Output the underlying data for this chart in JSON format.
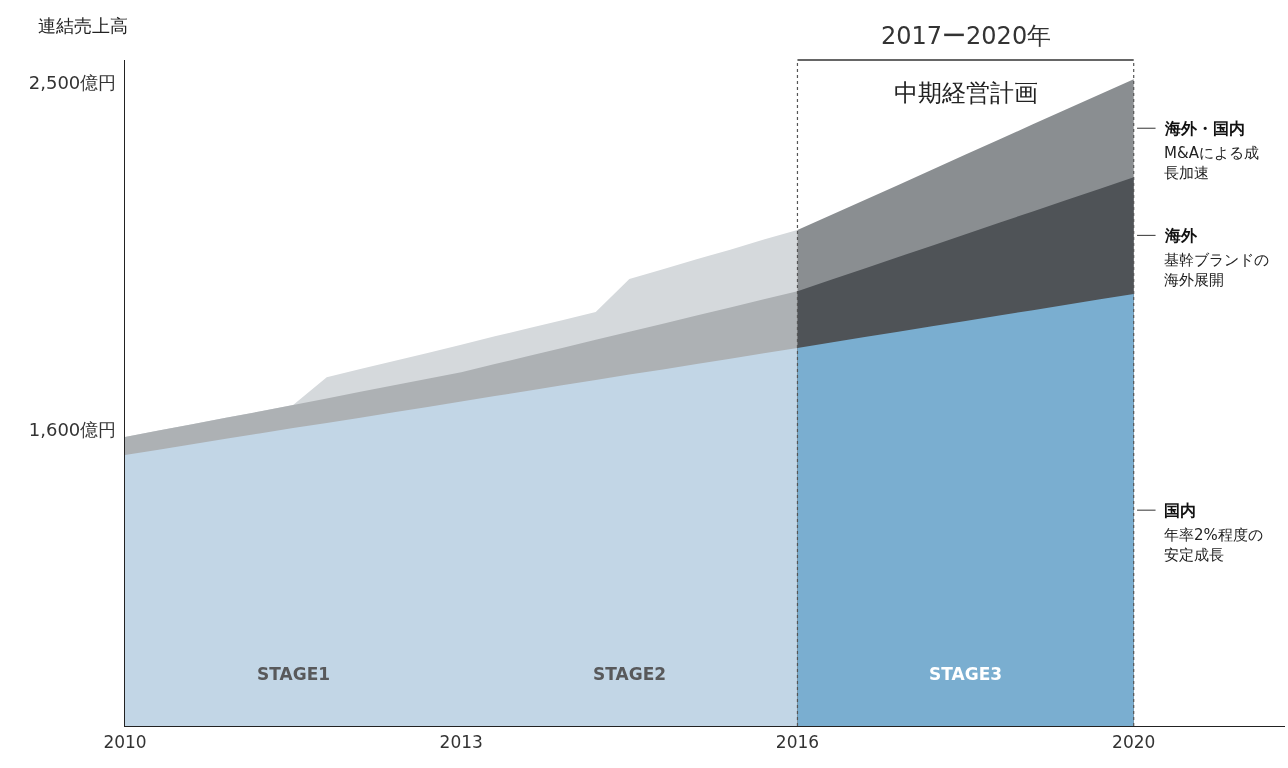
{
  "chart_data": {
    "type": "area",
    "ylabel": "連結売上高",
    "categories": [
      "2010",
      null,
      null,
      null,
      null,
      null,
      null,
      null,
      null,
      null,
      "2013",
      null,
      null,
      null,
      null,
      null,
      null,
      null,
      null,
      null,
      "2016",
      null,
      null,
      null,
      null,
      null,
      null,
      null,
      null,
      null,
      "2020"
    ],
    "ylim": [
      832,
      2560
    ],
    "yticks": [
      {
        "value": 1600,
        "label": "1,600億円"
      },
      {
        "value": 2500,
        "label": "2,500億円"
      }
    ],
    "series": [
      {
        "color": "#d5d9dc",
        "values": [
          1582,
          1599,
          1615,
          1632,
          1648,
          1665,
          1737,
          1758,
          1779,
          1800,
          1821,
          1843,
          1864,
          1885,
          1906,
          1992,
          2017,
          2043,
          2068,
          2094,
          2119,
          null,
          null,
          null,
          null,
          null,
          null,
          null,
          null,
          null,
          null
        ]
      },
      {
        "color": "#adb1b4",
        "values": [
          1582,
          1599,
          1615,
          1632,
          1648,
          1665,
          1682,
          1699,
          1716,
          1733,
          1750,
          1771,
          1792,
          1813,
          1834,
          1855,
          1876,
          1897,
          1918,
          1939,
          1960,
          null,
          null,
          null,
          null,
          null,
          null,
          null,
          null,
          null,
          null
        ]
      },
      {
        "color": "#c2d6e6",
        "values": [
          1535,
          1549,
          1563,
          1577,
          1591,
          1605,
          1618,
          1632,
          1646,
          1660,
          1674,
          1688,
          1702,
          1716,
          1730,
          1744,
          1757,
          1771,
          1785,
          1799,
          1813,
          null,
          null,
          null,
          null,
          null,
          null,
          null,
          null,
          null,
          null
        ]
      },
      {
        "name": "海外・国内",
        "color": "#8a8e91",
        "values": [
          null,
          null,
          null,
          null,
          null,
          null,
          null,
          null,
          null,
          null,
          null,
          null,
          null,
          null,
          null,
          null,
          null,
          null,
          null,
          null,
          2119,
          2158,
          2197,
          2236,
          2275,
          2315,
          2354,
          2393,
          2432,
          2471,
          2510
        ]
      },
      {
        "name": "海外",
        "color": "#4f5357",
        "values": [
          null,
          null,
          null,
          null,
          null,
          null,
          null,
          null,
          null,
          null,
          null,
          null,
          null,
          null,
          null,
          null,
          null,
          null,
          null,
          null,
          1960,
          1990,
          2019,
          2049,
          2078,
          2108,
          2138,
          2167,
          2197,
          2226,
          2256
        ]
      },
      {
        "name": "国内",
        "color": "#7aaed0",
        "values": [
          null,
          null,
          null,
          null,
          null,
          null,
          null,
          null,
          null,
          null,
          null,
          null,
          null,
          null,
          null,
          null,
          null,
          null,
          null,
          null,
          1813,
          1827,
          1841,
          1855,
          1869,
          1883,
          1897,
          1911,
          1925,
          1939,
          1953
        ]
      }
    ],
    "ref_lines": [
      {
        "axis": "x",
        "value": "2016",
        "line_style": "dotted",
        "color": "#555555"
      },
      {
        "axis": "x",
        "value": "2020",
        "line_style": "dotted",
        "color": "#555555"
      }
    ],
    "annotations": [
      "STAGE1",
      "STAGE2",
      "STAGE3",
      "2017ー2020年",
      "中期経営計画",
      {
        "text": "M&Aによる成長加速",
        "x": "2020",
        "y": 2383
      },
      {
        "text": "基幹ブランドの海外展開",
        "x": "2020",
        "y": 2105
      },
      {
        "text": "年率2%程度の安定成長",
        "x": "2020",
        "y": 1392
      }
    ],
    "legend": false
  }
}
